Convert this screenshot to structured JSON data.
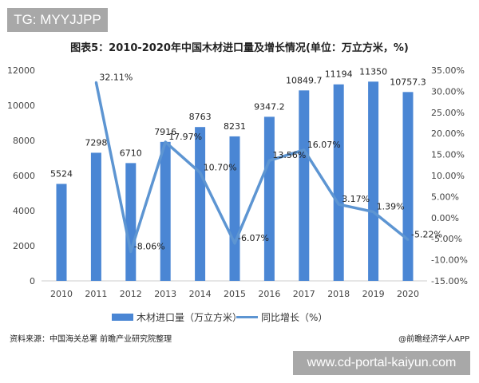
{
  "watermark_top": "TG: MYYJJPP",
  "watermark_bottom": "www.cd-portal-kaiyun.com",
  "source": "资料来源：中国海关总署 前瞻产业研究院整理",
  "credit": "@前瞻经济学人APP",
  "chart_data": {
    "type": "bar+line",
    "title": "图表5：2010-2020年中国木材进口量及增长情况(单位：万立方米，%)",
    "categories": [
      "2010",
      "2011",
      "2012",
      "2013",
      "2014",
      "2015",
      "2016",
      "2017",
      "2018",
      "2019",
      "2020"
    ],
    "series": [
      {
        "name": "木材进口量（万立方米）",
        "type": "bar",
        "axis": "left",
        "color": "#4a86d4",
        "values": [
          5524,
          7298,
          6710,
          7916,
          8763,
          8231,
          9347.2,
          10849.7,
          11194,
          11350,
          10757.3
        ],
        "labels": [
          "5524",
          "7298",
          "6710",
          "7916",
          "8763",
          "8231",
          "9347.2",
          "10849.7",
          "11194",
          "11350",
          "10757.3"
        ]
      },
      {
        "name": "同比增长（%）",
        "type": "line",
        "axis": "right",
        "color": "#5d95d2",
        "values": [
          null,
          32.11,
          -8.06,
          17.97,
          10.7,
          -6.07,
          13.56,
          16.07,
          3.17,
          1.39,
          -5.22
        ],
        "labels": [
          null,
          "32.11%",
          "-8.06%",
          "17.97%",
          "10.70%",
          "-6.07%",
          "13.56%",
          "16.07%",
          "3.17%",
          "1.39%",
          "-5.22%"
        ]
      }
    ],
    "ylim_left": [
      0,
      12000
    ],
    "yticks_left": [
      "0",
      "2000",
      "4000",
      "6000",
      "8000",
      "10000",
      "12000"
    ],
    "ylim_right": [
      -15,
      35
    ],
    "yticks_right": [
      "-15.00%",
      "-10.00%",
      "-5.00%",
      "0.00%",
      "5.00%",
      "10.00%",
      "15.00%",
      "20.00%",
      "25.00%",
      "30.00%",
      "35.00%"
    ],
    "grid": false,
    "legend": "bottom"
  }
}
